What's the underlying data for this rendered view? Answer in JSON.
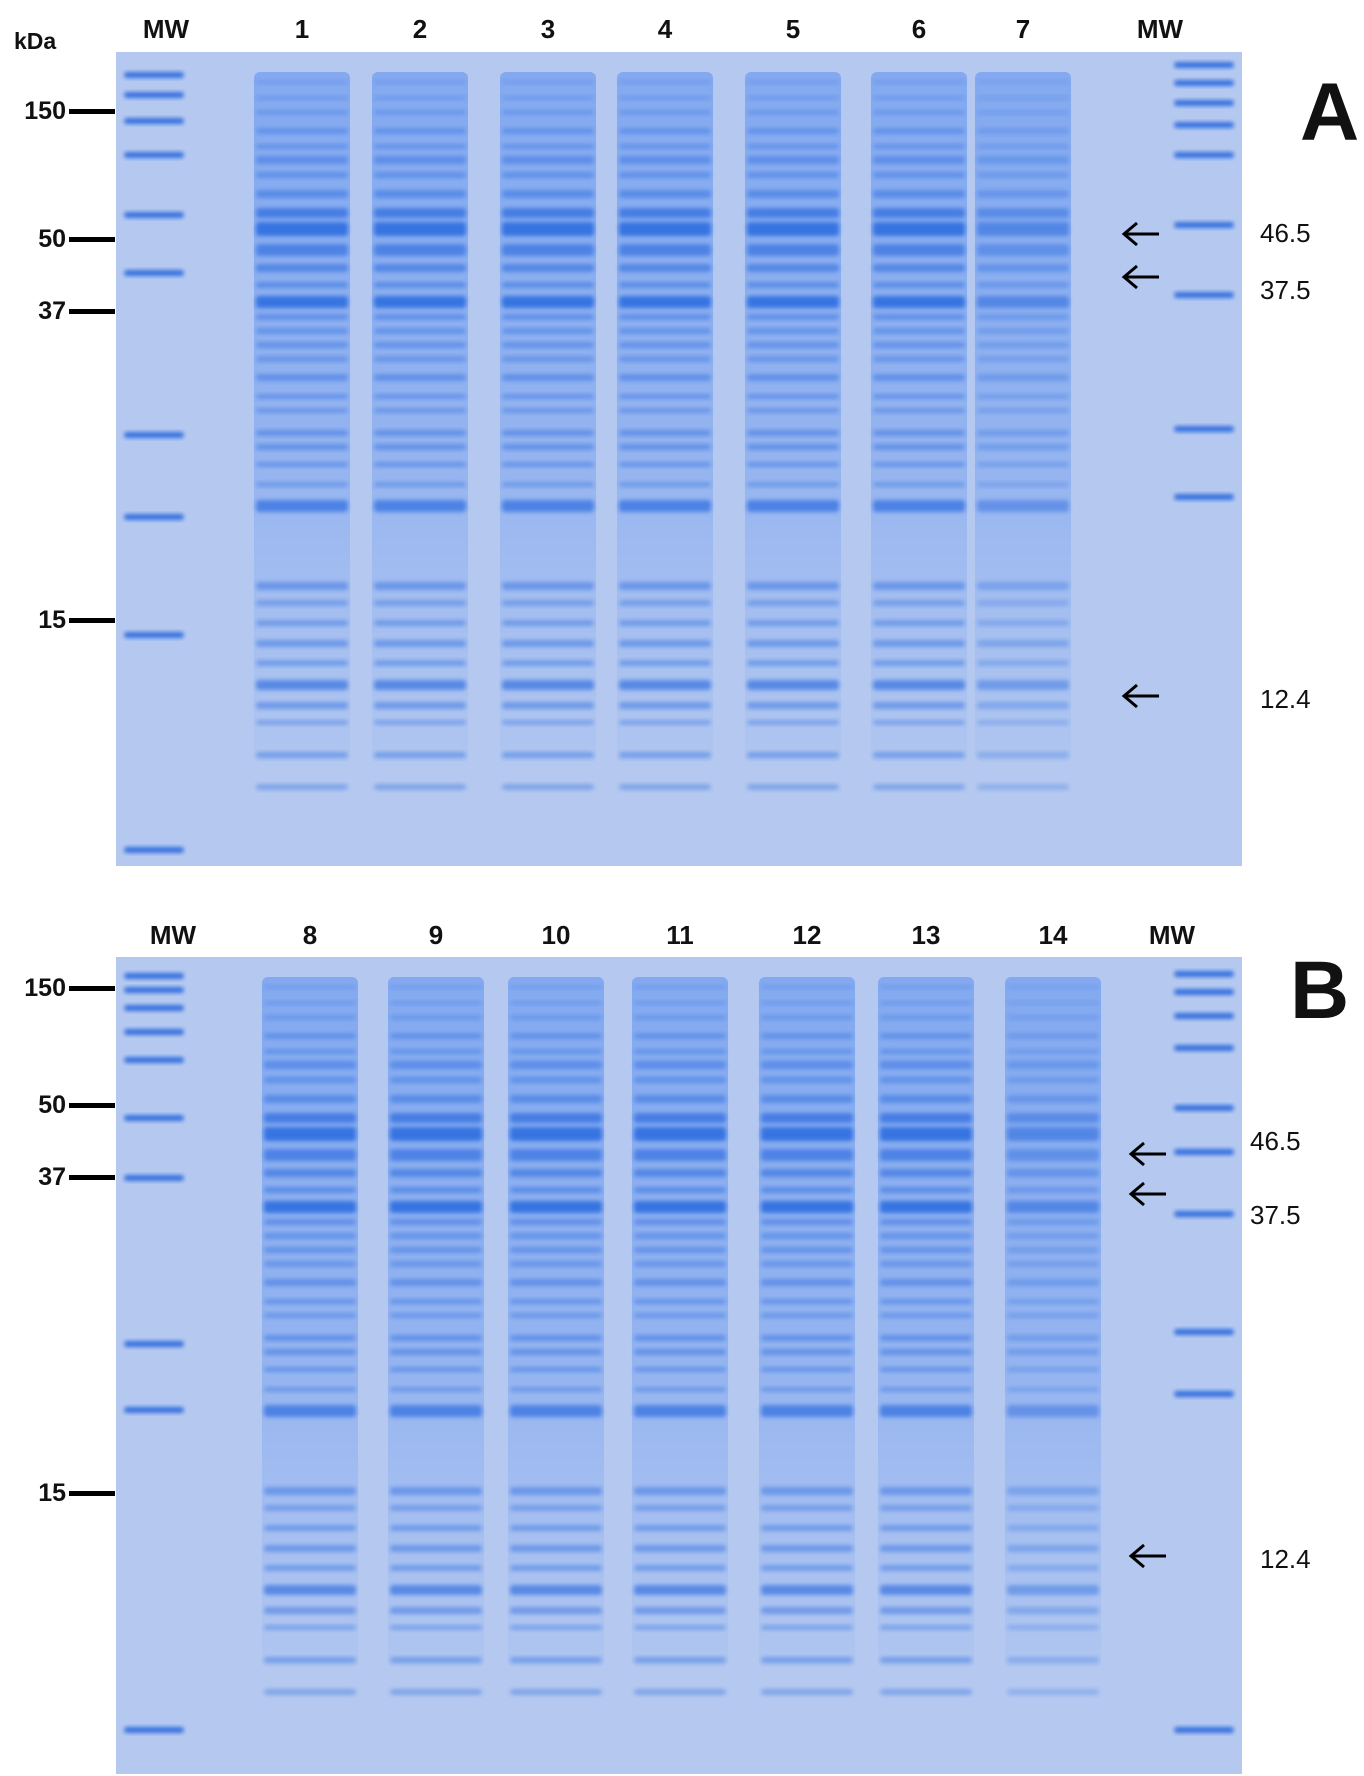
{
  "panels": [
    {
      "letter": "A",
      "unit": "kDa",
      "lane_labels": [
        "MW",
        "1",
        "2",
        "3",
        "4",
        "5",
        "6",
        "7",
        "MW"
      ],
      "markers": [
        {
          "label": "150"
        },
        {
          "label": "50"
        },
        {
          "label": "37"
        },
        {
          "label": "15"
        }
      ],
      "band_sizes": [
        {
          "label": "46.5"
        },
        {
          "label": "37.5"
        },
        {
          "label": "12.4"
        }
      ]
    },
    {
      "letter": "B",
      "lane_labels": [
        "MW",
        "8",
        "9",
        "10",
        "11",
        "12",
        "13",
        "14",
        "MW"
      ],
      "markers": [
        {
          "label": "150"
        },
        {
          "label": "50"
        },
        {
          "label": "37"
        },
        {
          "label": "15"
        }
      ],
      "band_sizes": [
        {
          "label": "46.5"
        },
        {
          "label": "37.5"
        },
        {
          "label": "12.4"
        }
      ]
    }
  ],
  "colors": {
    "gel_background": "#b5c9f0",
    "band_stain": "#2f6fe0",
    "ladder_stain": "#1f5fdc",
    "text": "#111111"
  }
}
